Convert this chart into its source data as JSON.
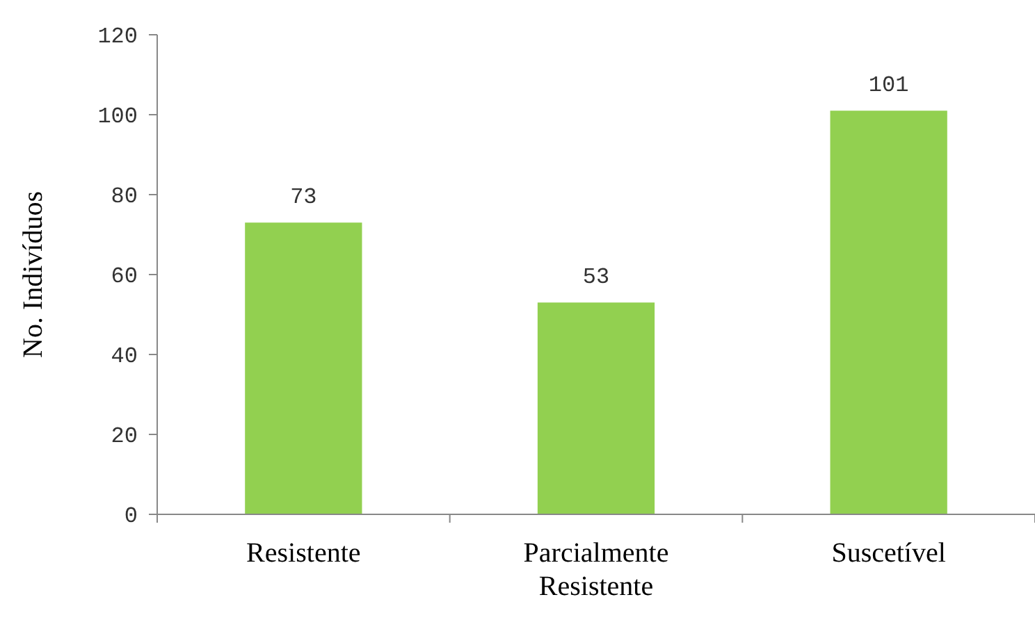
{
  "chart_data": {
    "type": "bar",
    "ylabel": "No. Indivíduos",
    "categories": [
      "Resistente",
      "Parcialmente Resistente",
      "Suscetível"
    ],
    "values": [
      73,
      53,
      101
    ],
    "color": "#92d050",
    "ylim": [
      0,
      120
    ],
    "yticks": [
      0,
      20,
      40,
      60,
      80,
      100,
      120
    ],
    "data_labels": true,
    "grid": false
  }
}
